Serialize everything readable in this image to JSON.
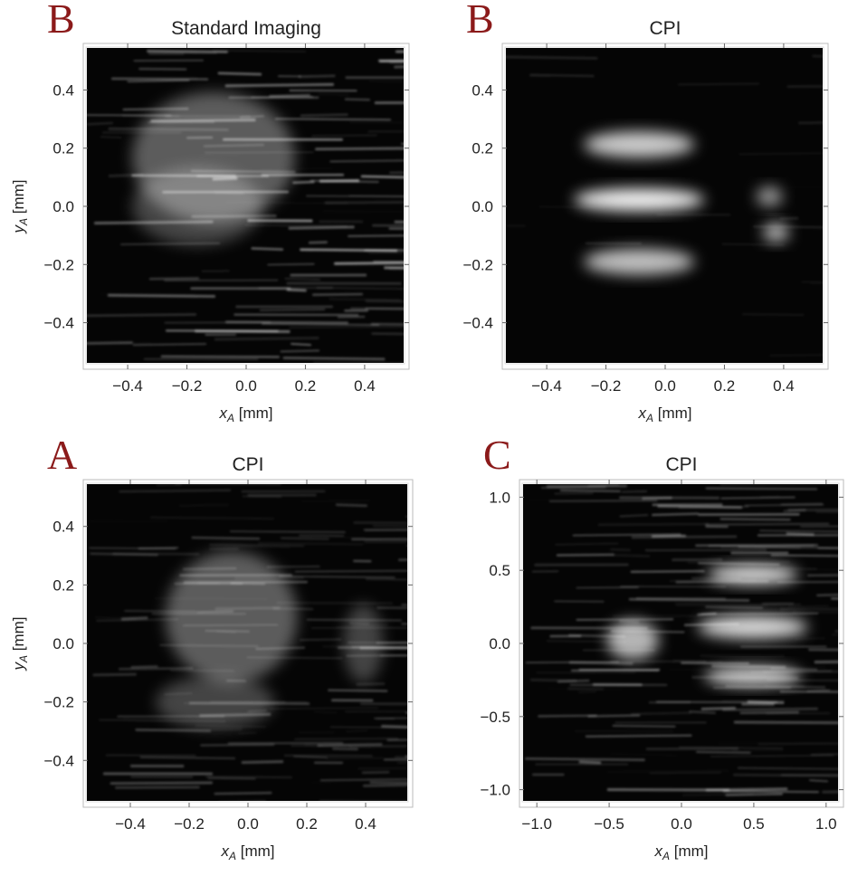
{
  "chart_data": [
    {
      "type": "image",
      "panel": "B",
      "title": "Standard Imaging",
      "xlabel": {
        "symbol": "x",
        "subscript": "A",
        "unit": " [mm]"
      },
      "ylabel": {
        "symbol": "y",
        "subscript": "A",
        "unit": " [mm]"
      },
      "xlim": [
        -0.55,
        0.55
      ],
      "ylim": [
        -0.56,
        0.56
      ],
      "xticks": [
        {
          "value": -0.4,
          "label": "−0.4"
        },
        {
          "value": -0.2,
          "label": "−0.2"
        },
        {
          "value": 0,
          "label": "0.0"
        },
        0.2,
        0.4
      ],
      "yticks": [
        {
          "value": -0.4,
          "label": "−0.4"
        },
        {
          "value": -0.2,
          "label": "−0.2"
        },
        {
          "value": 0,
          "label": "0.0"
        },
        0.2,
        0.4
      ]
    },
    {
      "type": "image",
      "panel": "B",
      "title": "CPI",
      "xlabel": {
        "symbol": "x",
        "subscript": "A",
        "unit": " [mm]"
      },
      "xlim": [
        -0.55,
        0.55
      ],
      "ylim": [
        -0.56,
        0.56
      ],
      "xticks": [
        {
          "value": -0.4,
          "label": "−0.4"
        },
        {
          "value": -0.2,
          "label": "−0.2"
        },
        {
          "value": 0,
          "label": "0.0"
        },
        0.2,
        0.4
      ],
      "yticks": [
        {
          "value": -0.4,
          "label": "−0.4"
        },
        {
          "value": -0.2,
          "label": "−0.2"
        },
        {
          "value": 0,
          "label": "0.0"
        },
        0.2,
        0.4
      ]
    },
    {
      "type": "image",
      "panel": "A",
      "title": "CPI",
      "xlabel": {
        "symbol": "x",
        "subscript": "A",
        "unit": " [mm]"
      },
      "ylabel": {
        "symbol": "y",
        "subscript": "A",
        "unit": " [mm]"
      },
      "xlim": [
        -0.56,
        0.56
      ],
      "ylim": [
        -0.56,
        0.56
      ],
      "xticks": [
        {
          "value": -0.4,
          "label": "−0.4"
        },
        {
          "value": -0.2,
          "label": "−0.2"
        },
        {
          "value": 0,
          "label": "0.0"
        },
        0.2,
        0.4
      ],
      "yticks": [
        {
          "value": -0.4,
          "label": "−0.4"
        },
        {
          "value": -0.2,
          "label": "−0.2"
        },
        {
          "value": 0,
          "label": "0.0"
        },
        0.2,
        0.4
      ]
    },
    {
      "type": "image",
      "panel": "C",
      "title": "CPI",
      "xlabel": {
        "symbol": "x",
        "subscript": "A",
        "unit": " [mm]"
      },
      "xlim": [
        -1.12,
        1.12
      ],
      "ylim": [
        -1.12,
        1.12
      ],
      "xticks": [
        {
          "value": -1,
          "label": "−1.0"
        },
        {
          "value": -0.5,
          "label": "−0.5"
        },
        {
          "value": 0,
          "label": "0.0"
        },
        0.5,
        {
          "value": 1,
          "label": "1.0"
        }
      ],
      "yticks": [
        {
          "value": -1,
          "label": "−1.0"
        },
        {
          "value": -0.5,
          "label": "−0.5"
        },
        {
          "value": 0,
          "label": "0.0"
        },
        0.5,
        {
          "value": 1,
          "label": "1.0"
        }
      ]
    }
  ]
}
